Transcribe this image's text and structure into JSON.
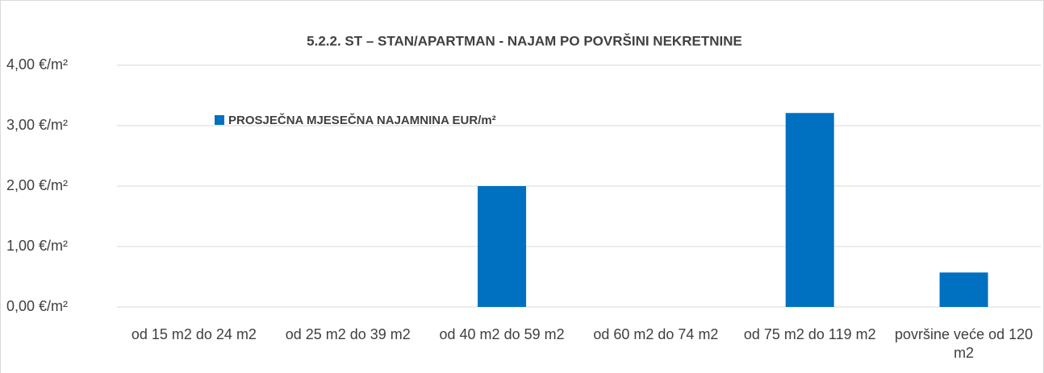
{
  "chart_data": {
    "type": "bar",
    "title": "5.2.2. ST – STAN/APARTMAN - NAJAM PO POVRŠINI NEKRETNINE",
    "categories": [
      "od 15 m2 do 24 m2",
      "od 25 m2 do 39 m2",
      "od 40 m2 do 59 m2",
      "od 60 m2 do 74 m2",
      "od 75 m2 do 119 m2",
      "površine veće od 120 m2"
    ],
    "series": [
      {
        "name": "PROSJEČNA MJESEČNA NAJAMNINA EUR/m²",
        "color": "#0070c0",
        "values": [
          0,
          0,
          2.0,
          0,
          3.21,
          0.57
        ]
      }
    ],
    "ylim": [
      0,
      4
    ],
    "yticks": [
      {
        "value": 0,
        "label": "0,00 €/m²"
      },
      {
        "value": 1,
        "label": "1,00 €/m²"
      },
      {
        "value": 2,
        "label": "2,00 €/m²"
      },
      {
        "value": 3,
        "label": "3,00 €/m²"
      },
      {
        "value": 4,
        "label": "4,00 €/m²"
      }
    ],
    "grid": true,
    "legend": "top-left"
  }
}
